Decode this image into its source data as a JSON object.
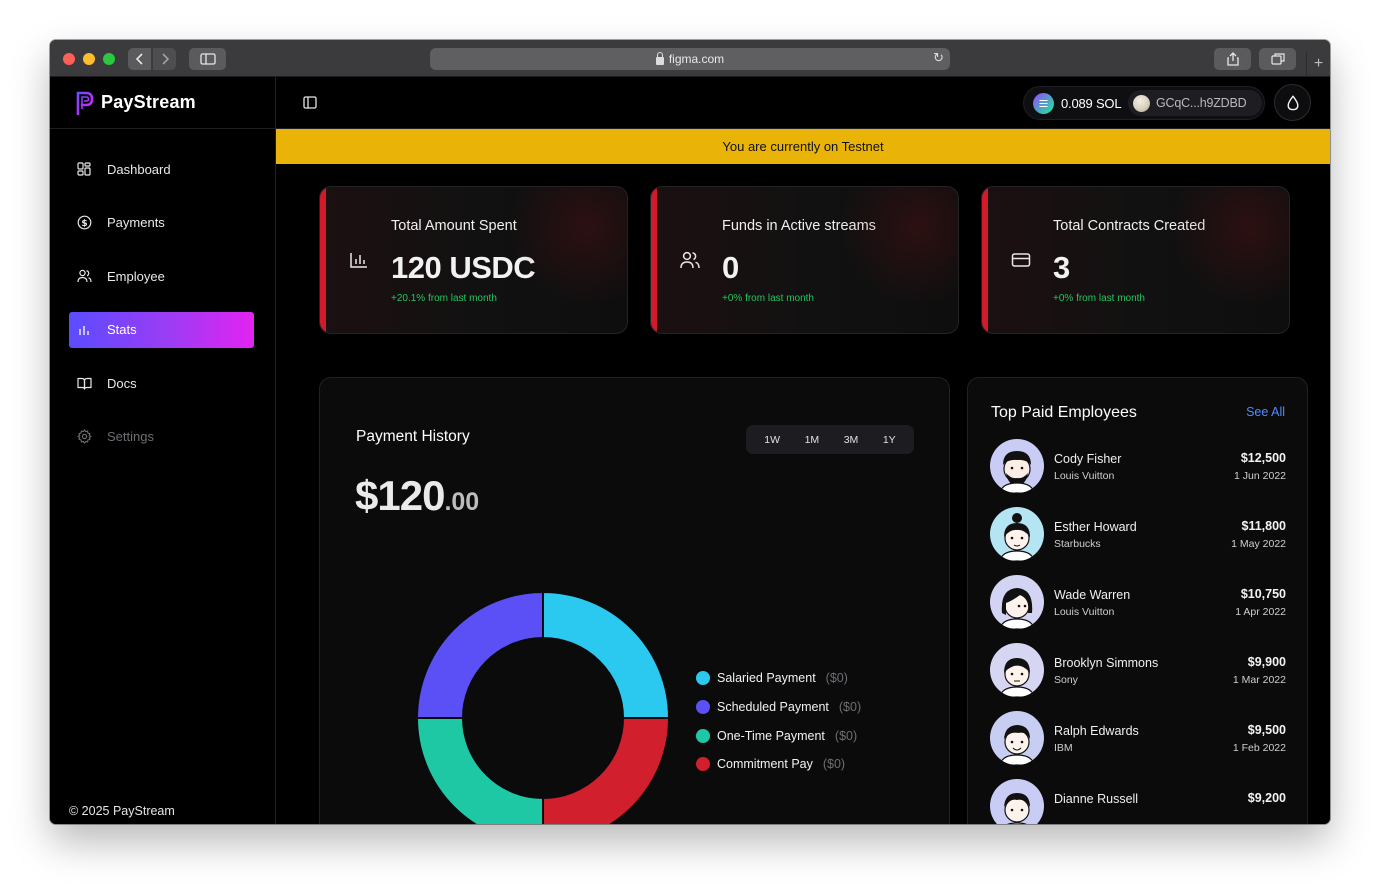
{
  "browser": {
    "url": "figma.com"
  },
  "brand": {
    "name": "PayStream"
  },
  "sidebar": {
    "items": [
      {
        "label": "Dashboard",
        "icon": "dashboard-icon"
      },
      {
        "label": "Payments",
        "icon": "dollar-circle-icon"
      },
      {
        "label": "Employee",
        "icon": "users-icon"
      },
      {
        "label": "Stats",
        "icon": "bar-chart-icon",
        "active": true
      },
      {
        "label": "Docs",
        "icon": "book-icon"
      },
      {
        "label": "Settings",
        "icon": "gear-icon",
        "disabled": true
      }
    ],
    "copyright": "© 2025 PayStream"
  },
  "wallet": {
    "balance": "0.089 SOL",
    "address": "GCqC...h9ZDBD"
  },
  "banner": {
    "text": "You are currently on Testnet",
    "color": "#eab308"
  },
  "stats": [
    {
      "title": "Total Amount Spent",
      "value": "120 USDC",
      "change": "+20.1% from last month",
      "icon": "bar-chart-icon"
    },
    {
      "title": "Funds in Active streams",
      "value": "0",
      "change": "+0% from last month",
      "icon": "users-icon"
    },
    {
      "title": "Total Contracts Created",
      "value": "3",
      "change": "+0% from last month",
      "icon": "credit-card-icon"
    }
  ],
  "payment_history": {
    "title": "Payment History",
    "ranges": [
      "1W",
      "1M",
      "3M",
      "1Y"
    ],
    "total_major": "$120",
    "total_minor": ".00",
    "legend": [
      {
        "label": "Salaried Payment",
        "amount": "($0)",
        "color": "#2bc8ef"
      },
      {
        "label": "Scheduled Payment",
        "amount": "($0)",
        "color": "#5b50f5"
      },
      {
        "label": "One-Time Payment",
        "amount": "($0)",
        "color": "#1fc8a4"
      },
      {
        "label": "Commitment Pay",
        "amount": "($0)",
        "color": "#d11f2e"
      }
    ]
  },
  "chart_data": {
    "type": "pie",
    "categories": [
      "Salaried Payment",
      "Scheduled Payment",
      "One-Time Payment",
      "Commitment Pay"
    ],
    "values": [
      25,
      25,
      25,
      25
    ],
    "colors": [
      "#2bc8ef",
      "#5b50f5",
      "#1fc8a4",
      "#d11f2e"
    ],
    "title": "Payment History"
  },
  "top_employees": {
    "title": "Top Paid Employees",
    "see_all": "See All",
    "items": [
      {
        "name": "Cody Fisher",
        "company": "Louis Vuitton",
        "amount": "$12,500",
        "date": "1 Jun 2022",
        "bg": "#c9cdf5"
      },
      {
        "name": "Esther Howard",
        "company": "Starbucks",
        "amount": "$11,800",
        "date": "1 May 2022",
        "bg": "#b5e4f2"
      },
      {
        "name": "Wade Warren",
        "company": "Louis Vuitton",
        "amount": "$10,750",
        "date": "1 Apr 2022",
        "bg": "#d3d4f4"
      },
      {
        "name": "Brooklyn Simmons",
        "company": "Sony",
        "amount": "$9,900",
        "date": "1 Mar 2022",
        "bg": "#d6d6f2"
      },
      {
        "name": "Ralph Edwards",
        "company": "IBM",
        "amount": "$9,500",
        "date": "1 Feb 2022",
        "bg": "#c8cdf2"
      },
      {
        "name": "Dianne Russell",
        "company": "",
        "amount": "$9,200",
        "date": "",
        "bg": "#c9cdf5"
      }
    ]
  }
}
